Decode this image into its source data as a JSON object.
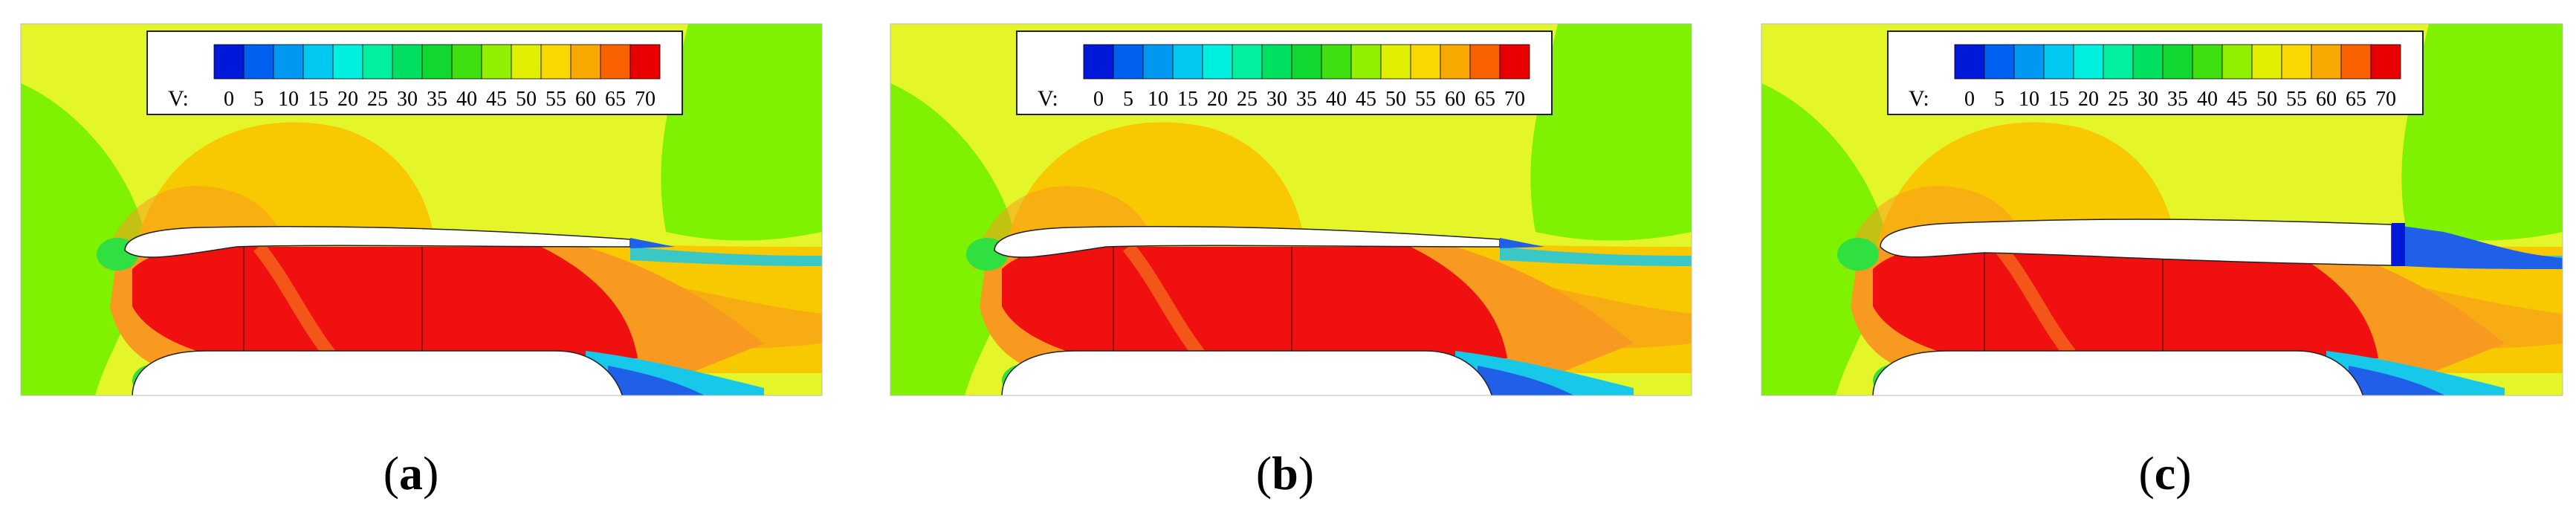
{
  "legend": {
    "variable_label": "V:",
    "ticks": [
      "0",
      "5",
      "10",
      "15",
      "20",
      "25",
      "30",
      "35",
      "40",
      "45",
      "50",
      "55",
      "60",
      "65",
      "70"
    ],
    "colors": [
      "#0018d8",
      "#0060f0",
      "#0098f0",
      "#00c8f0",
      "#00f0e0",
      "#00f0a0",
      "#00e060",
      "#10d830",
      "#40e010",
      "#90f000",
      "#e0f000",
      "#f8d800",
      "#f8a800",
      "#f86000",
      "#e80000"
    ]
  },
  "field_colors": {
    "background": "#e4f52a",
    "green": "#7ef200",
    "orange": "#f89a20",
    "red": "#f01010",
    "yellow_orange": "#f8c800",
    "cyan": "#18c8e8",
    "blue": "#2060e8",
    "dark_blue": "#0018d8",
    "green_spot": "#30e040"
  },
  "panels": [
    {
      "label": "a"
    },
    {
      "label": "b"
    },
    {
      "label": "c"
    }
  ]
}
